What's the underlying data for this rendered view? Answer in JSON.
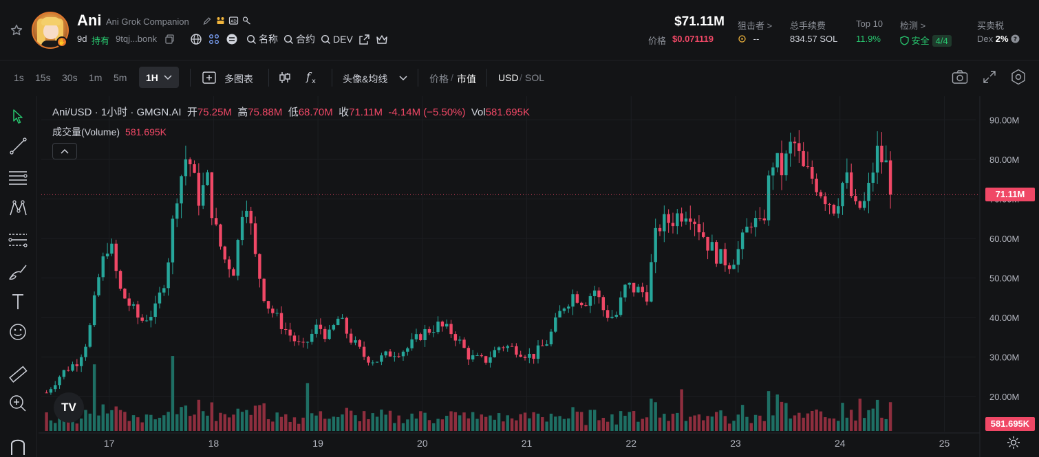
{
  "header": {
    "name": "Ani",
    "full_name": "Ani Grok Companion",
    "age": "9d",
    "holders_label": "持有",
    "address": "9tqj...bonk",
    "link_name": "名称",
    "link_contract": "合约",
    "link_dev": "DEV",
    "market_cap": "$71.11M",
    "price_label": "价格",
    "price": "$0.071119",
    "stats": [
      {
        "label": "狙击者 >",
        "value": "--"
      },
      {
        "label": "总手续费",
        "value": "834.57 SOL"
      },
      {
        "label": "Top 10",
        "value": "11.9%"
      },
      {
        "label": "检测 >",
        "value": "安全",
        "extra": "4/4"
      },
      {
        "label": "买卖税",
        "value": "Dex",
        "extra": "2%"
      }
    ]
  },
  "toolbar": {
    "timeframes": [
      "1s",
      "15s",
      "30s",
      "1m",
      "5m"
    ],
    "active_timeframe": "1H",
    "multi_chart": "多图表",
    "indicators": "头像&均线",
    "price_label": "价格",
    "mcap_label": "市值",
    "usd_label": "USD",
    "sol_label": "SOL"
  },
  "legend": {
    "symbol": "Ani/USD · 1小时 · GMGN.AI",
    "open_label": "开",
    "open": "75.25M",
    "high_label": "高",
    "high": "75.88M",
    "low_label": "低",
    "low": "68.70M",
    "close_label": "收",
    "close": "71.11M",
    "change": "-4.14M (−5.50%)",
    "vol_label": "Vol",
    "vol": "581.695K",
    "volume_title": "成交量(Volume)",
    "volume_value": "581.695K"
  },
  "colors": {
    "up": "#26a69a",
    "down": "#f04866",
    "bg": "#131416"
  },
  "chart_data": {
    "type": "candlestick",
    "interval": "1H",
    "unit": "USD market cap (M)",
    "x_labels": [
      "17",
      "18",
      "19",
      "20",
      "21",
      "22",
      "23",
      "24",
      "25"
    ],
    "y_ticks": [
      "90.00M",
      "80.00M",
      "70.00M",
      "60.00M",
      "50.00M",
      "40.00M",
      "30.00M",
      "20.00M"
    ],
    "y_tick_values": [
      90,
      80,
      70,
      60,
      50,
      40,
      30,
      20
    ],
    "ylim": [
      16,
      96
    ],
    "x_start_day": 16.35,
    "x_end_day": 25.3,
    "last_price_label": "71.11M",
    "last_price": 71.11,
    "last_volume_label": "581.695K",
    "close_anchors": [
      [
        16.4,
        21
      ],
      [
        16.55,
        26
      ],
      [
        16.7,
        29
      ],
      [
        16.8,
        35
      ],
      [
        16.9,
        50
      ],
      [
        17.0,
        60
      ],
      [
        17.1,
        47
      ],
      [
        17.2,
        43
      ],
      [
        17.3,
        39
      ],
      [
        17.45,
        42
      ],
      [
        17.55,
        52
      ],
      [
        17.65,
        72
      ],
      [
        17.75,
        82
      ],
      [
        17.85,
        70
      ],
      [
        17.95,
        75
      ],
      [
        18.0,
        64
      ],
      [
        18.1,
        55
      ],
      [
        18.2,
        52
      ],
      [
        18.3,
        73
      ],
      [
        18.4,
        55
      ],
      [
        18.5,
        44
      ],
      [
        18.6,
        40
      ],
      [
        18.75,
        35
      ],
      [
        18.85,
        32
      ],
      [
        19.0,
        38
      ],
      [
        19.1,
        35
      ],
      [
        19.2,
        40
      ],
      [
        19.3,
        35
      ],
      [
        19.45,
        30
      ],
      [
        19.55,
        29
      ],
      [
        19.7,
        31
      ],
      [
        19.85,
        32
      ],
      [
        20.0,
        36
      ],
      [
        20.15,
        38
      ],
      [
        20.3,
        36
      ],
      [
        20.45,
        30
      ],
      [
        20.6,
        29
      ],
      [
        20.75,
        33
      ],
      [
        20.9,
        32
      ],
      [
        21.05,
        30
      ],
      [
        21.2,
        34
      ],
      [
        21.35,
        43
      ],
      [
        21.45,
        46
      ],
      [
        21.55,
        44
      ],
      [
        21.65,
        47
      ],
      [
        21.75,
        41
      ],
      [
        21.85,
        40
      ],
      [
        21.95,
        48
      ],
      [
        22.05,
        47
      ],
      [
        22.15,
        46
      ],
      [
        22.25,
        63
      ],
      [
        22.4,
        65
      ],
      [
        22.55,
        68
      ],
      [
        22.65,
        63
      ],
      [
        22.75,
        58
      ],
      [
        22.85,
        55
      ],
      [
        22.95,
        54
      ],
      [
        23.05,
        58
      ],
      [
        23.15,
        65
      ],
      [
        23.25,
        62
      ],
      [
        23.35,
        80
      ],
      [
        23.45,
        77
      ],
      [
        23.55,
        85
      ],
      [
        23.65,
        77
      ],
      [
        23.75,
        75
      ],
      [
        23.85,
        71
      ],
      [
        23.95,
        68
      ],
      [
        24.05,
        76
      ],
      [
        24.15,
        67
      ],
      [
        24.25,
        69
      ],
      [
        24.35,
        82
      ],
      [
        24.45,
        78
      ],
      [
        24.5,
        71.11
      ]
    ],
    "volume_spikes": [
      [
        16.85,
        32000
      ],
      [
        17.6,
        36000
      ],
      [
        18.9,
        23000
      ],
      [
        22.5,
        20000
      ],
      [
        23.4,
        17500
      ],
      [
        24.2,
        15500
      ]
    ]
  }
}
